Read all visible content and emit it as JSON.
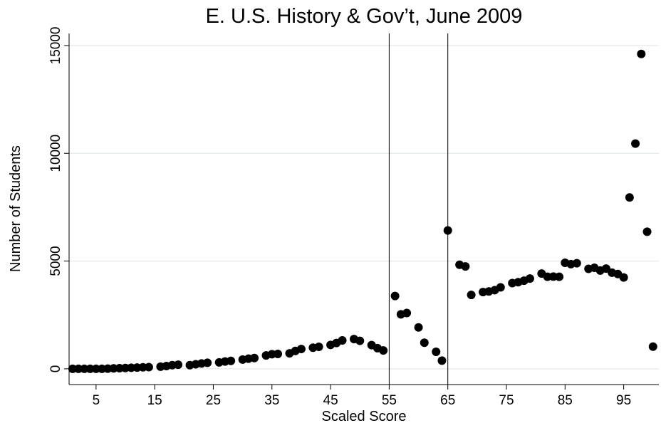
{
  "chart_data": {
    "type": "scatter",
    "title": "E. U.S. History & Gov’t, June 2009",
    "x_label": "Scaled Score",
    "y_label": "Number of Students",
    "color": "#000000",
    "grid": true,
    "vlines": [
      55,
      65
    ],
    "xlim": [
      0.4,
      101
    ],
    "ylim": [
      -730,
      15560
    ],
    "xticks": [
      5,
      15,
      25,
      35,
      45,
      55,
      65,
      75,
      85,
      95
    ],
    "yticks": [
      0,
      5000,
      10000,
      15000
    ],
    "x": [
      1,
      2,
      3,
      4,
      5,
      6,
      7,
      8,
      9,
      10,
      11,
      12,
      13,
      14,
      16,
      17,
      18,
      19,
      21,
      22,
      23,
      24,
      26,
      27,
      28,
      30,
      31,
      32,
      34,
      35,
      36,
      38,
      39,
      40,
      42,
      43,
      45,
      46,
      47,
      49,
      50,
      52,
      53,
      54,
      56,
      57,
      58,
      60,
      61,
      63,
      64,
      65,
      67,
      68,
      69,
      71,
      72,
      73,
      74,
      76,
      77,
      78,
      79,
      81,
      82,
      83,
      84,
      85,
      86,
      87,
      89,
      90,
      91,
      92,
      93,
      94,
      95,
      96,
      97,
      98,
      99,
      100
    ],
    "values": [
      0,
      0,
      0,
      0,
      0,
      0,
      10,
      20,
      30,
      40,
      50,
      60,
      70,
      80,
      100,
      130,
      170,
      190,
      170,
      210,
      250,
      280,
      300,
      340,
      370,
      430,
      470,
      500,
      620,
      680,
      690,
      720,
      830,
      920,
      980,
      1020,
      1110,
      1200,
      1320,
      1380,
      1300,
      1100,
      960,
      850,
      3380,
      2530,
      2590,
      1920,
      1210,
      790,
      380,
      6420,
      4830,
      4750,
      3430,
      3560,
      3590,
      3650,
      3780,
      3980,
      4020,
      4090,
      4190,
      4420,
      4270,
      4280,
      4270,
      4920,
      4860,
      4900,
      4640,
      4690,
      4560,
      4650,
      4460,
      4400,
      4240,
      7950,
      10450,
      14610,
      6360,
      1030
    ]
  }
}
